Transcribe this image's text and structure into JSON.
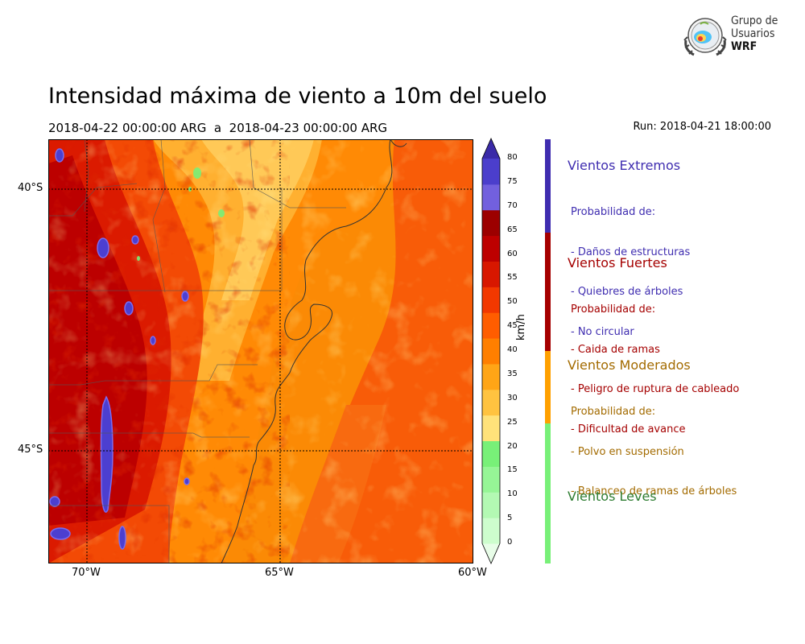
{
  "header": {
    "title": "Intensidad máxima de viento a 10m del suelo",
    "period": "2018-04-22 00:00:00 ARG  a  2018-04-23 00:00:00 ARG",
    "run": "Run: 2018-04-21 18:00:00"
  },
  "logo": {
    "line1": "Grupo de",
    "line2": "Usuarios",
    "line3": "WRF"
  },
  "map": {
    "lon_range": [
      -71,
      -60
    ],
    "lat_range": [
      -47.2,
      -39.1
    ],
    "lon_ticks": [
      "70°W",
      "65°W",
      "60°W"
    ],
    "lat_ticks": [
      "40°S",
      "45°S"
    ],
    "colors": {
      "ocean_fill": "#fb8a05",
      "land_fill": "#f06a12",
      "border": "#333333"
    }
  },
  "colorbar": {
    "units": "km/h",
    "levels": [
      0,
      5,
      10,
      15,
      20,
      25,
      30,
      35,
      40,
      45,
      50,
      55,
      60,
      65,
      70,
      75,
      80
    ],
    "labels": [
      "0",
      "5",
      "10",
      "15",
      "20",
      "25",
      "30",
      "35",
      "40",
      "45",
      "50",
      "55",
      "60",
      "65",
      "70",
      "75",
      "80"
    ],
    "colors": [
      "#e8fde8",
      "#cdfdcd",
      "#b3f9b3",
      "#96f596",
      "#78f078",
      "#ffe27a",
      "#ffc340",
      "#ffa516",
      "#ff7f00",
      "#ff5d00",
      "#f23800",
      "#d81700",
      "#bd0000",
      "#9c0000",
      "#7260de",
      "#4b3ecc",
      "#3a2aa8"
    ]
  },
  "categories": [
    {
      "name": "Vientos Extremos",
      "color": "#3f2db0",
      "text_color": "#3f2db0",
      "lines": [
        "Probabilidad de:",
        "- Daños de estructuras",
        "- Quiebres de árboles",
        "- No circular"
      ],
      "range_kmh": [
        65,
        80
      ]
    },
    {
      "name": "Vientos Fuertes",
      "color": "#a50000",
      "text_color": "#a50000",
      "lines": [
        "Probabilidad de:",
        "- Caida de ramas",
        "- Peligro de ruptura de cableado",
        "- Dificultad de avance"
      ],
      "range_kmh": [
        40,
        65
      ]
    },
    {
      "name": "Vientos Moderados",
      "color": "#ffa000",
      "text_color": "#a36b00",
      "lines": [
        "Probabilidad de:",
        "- Polvo en suspensión",
        "- Balanceo de ramas de árboles"
      ],
      "range_kmh": [
        25,
        40
      ]
    },
    {
      "name": "Vientos Leves",
      "color": "#78f078",
      "text_color": "#2e7d32",
      "lines": [],
      "range_kmh": [
        0,
        25
      ]
    }
  ]
}
